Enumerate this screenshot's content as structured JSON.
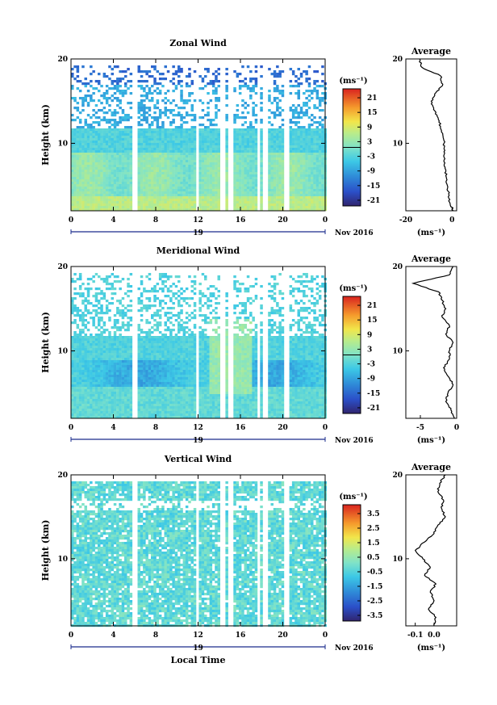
{
  "chart_data": [
    {
      "type": "heatmap",
      "title": "Zonal Wind",
      "ylabel": "Height (km)",
      "xticks": [
        "0",
        "4",
        "8",
        "12",
        "16",
        "20",
        "0"
      ],
      "xlim": [
        0,
        24
      ],
      "yticks": [
        "20",
        "10"
      ],
      "ylim": [
        2,
        20
      ],
      "date_label": "19",
      "month_label": "Nov 2016",
      "colorbar": {
        "unit": "(ms⁻¹)",
        "ticks": [
          "21",
          "15",
          "9",
          "3",
          "-3",
          "-9",
          "-15",
          "-21"
        ],
        "range": [
          -24,
          24
        ]
      },
      "average": {
        "title": "Average",
        "xticks": [
          "-20",
          "0"
        ],
        "xlim": [
          -20,
          2
        ],
        "unit": "(ms⁻¹)",
        "height": [
          2,
          3,
          4,
          5,
          6,
          7,
          8,
          9,
          10,
          11,
          12,
          13,
          14,
          15,
          16,
          17,
          18,
          19,
          20
        ],
        "value": [
          0.5,
          -1,
          -1.5,
          -2,
          -2.5,
          -3,
          -3.5,
          -3.5,
          -3.5,
          -4,
          -5,
          -6,
          -8,
          -9,
          -7,
          -4,
          -5,
          -13,
          -14
        ]
      }
    },
    {
      "type": "heatmap",
      "title": "Meridional Wind",
      "ylabel": "Height (km)",
      "xticks": [
        "0",
        "4",
        "8",
        "12",
        "16",
        "20",
        "0"
      ],
      "xlim": [
        0,
        24
      ],
      "yticks": [
        "20",
        "10"
      ],
      "ylim": [
        2,
        20
      ],
      "date_label": "19",
      "month_label": "Nov 2016",
      "colorbar": {
        "unit": "(ms⁻¹)",
        "ticks": [
          "21",
          "15",
          "9",
          "3",
          "-3",
          "-9",
          "-15",
          "-21"
        ],
        "range": [
          -24,
          24
        ]
      },
      "average": {
        "title": "Average",
        "xticks": [
          "-5",
          "0"
        ],
        "xlim": [
          -7,
          0
        ],
        "unit": "(ms⁻¹)",
        "height": [
          2,
          3,
          4,
          5,
          6,
          7,
          8,
          9,
          10,
          11,
          12,
          13,
          14,
          15,
          16,
          17,
          18,
          19,
          20
        ],
        "value": [
          -0.3,
          -0.8,
          -1.5,
          -1.2,
          -0.5,
          -1.2,
          -1.8,
          -1,
          -1,
          -0.5,
          -1.5,
          -1,
          -2,
          -1.5,
          -2,
          -2.5,
          -6,
          -1,
          -0.5
        ]
      }
    },
    {
      "type": "heatmap",
      "title": "Vertical Wind",
      "ylabel": "Height (km)",
      "xlabel": "Local Time",
      "xticks": [
        "0",
        "4",
        "8",
        "12",
        "16",
        "20",
        "0"
      ],
      "xlim": [
        0,
        24
      ],
      "yticks": [
        "20",
        "10"
      ],
      "ylim": [
        2,
        20
      ],
      "date_label": "19",
      "month_label": "Nov 2016",
      "colorbar": {
        "unit": "(ms⁻¹)",
        "ticks": [
          "3.5",
          "2.5",
          "1.5",
          "0.5",
          "-0.5",
          "-1.5",
          "-2.5",
          "-3.5"
        ],
        "range": [
          -4,
          4
        ]
      },
      "average": {
        "title": "Average",
        "xticks": [
          "-0.1",
          "0.0"
        ],
        "xlim": [
          -0.15,
          0.12
        ],
        "unit": "(ms⁻¹)",
        "height": [
          2,
          3,
          4,
          5,
          6,
          7,
          8,
          9,
          10,
          11,
          12,
          13,
          14,
          15,
          16,
          17,
          18,
          19,
          20
        ],
        "value": [
          0.0,
          0.01,
          -0.03,
          0.0,
          -0.02,
          0.01,
          -0.05,
          -0.02,
          -0.06,
          -0.1,
          -0.05,
          0.0,
          0.02,
          0.06,
          0.04,
          0.05,
          0.02,
          0.03,
          0.06
        ]
      }
    }
  ]
}
